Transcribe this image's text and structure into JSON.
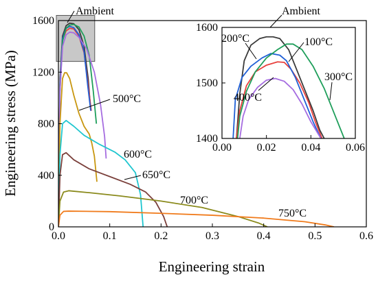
{
  "chart_data": [
    {
      "type": "line",
      "xlabel": "Engineering strain",
      "ylabel": "Engineering stress (MPa)",
      "xlim": [
        0.0,
        0.6
      ],
      "ylim": [
        0,
        1600
      ],
      "xticks": [
        "0.0",
        "0.1",
        "0.2",
        "0.3",
        "0.4",
        "0.5",
        "0.6"
      ],
      "yticks": [
        "0",
        "400",
        "800",
        "1200",
        "1600"
      ],
      "grid": false,
      "annotations": [
        "Ambient",
        "500°C",
        "600°C",
        "650°C",
        "700°C",
        "750°C"
      ],
      "series": [
        {
          "name": "Ambient",
          "color": "#3a3a3a",
          "x": [
            0.0,
            0.003,
            0.008,
            0.015,
            0.022,
            0.03,
            0.04,
            0.05,
            0.058,
            0.062
          ],
          "y": [
            0,
            1150,
            1480,
            1560,
            1580,
            1575,
            1530,
            1400,
            1150,
            950
          ]
        },
        {
          "name": "100°C",
          "color": "#e8403d",
          "x": [
            0.0,
            0.003,
            0.008,
            0.015,
            0.022,
            0.03,
            0.04,
            0.05,
            0.058,
            0.064
          ],
          "y": [
            0,
            1100,
            1450,
            1520,
            1540,
            1535,
            1480,
            1350,
            1100,
            900
          ]
        },
        {
          "name": "200°C",
          "color": "#1f5fd6",
          "x": [
            0.0,
            0.003,
            0.008,
            0.015,
            0.022,
            0.03,
            0.04,
            0.05,
            0.057,
            0.063
          ],
          "y": [
            0,
            1100,
            1460,
            1540,
            1555,
            1545,
            1490,
            1360,
            1100,
            900
          ]
        },
        {
          "name": "300°C",
          "color": "#1e9e5a",
          "x": [
            0.0,
            0.003,
            0.008,
            0.015,
            0.022,
            0.03,
            0.04,
            0.05,
            0.06,
            0.068,
            0.074
          ],
          "y": [
            0,
            1050,
            1440,
            1540,
            1565,
            1570,
            1550,
            1480,
            1330,
            1050,
            800
          ]
        },
        {
          "name": "400°C",
          "color": "#a56ce0",
          "x": [
            0.0,
            0.003,
            0.008,
            0.015,
            0.022,
            0.03,
            0.04,
            0.055,
            0.07,
            0.082,
            0.09,
            0.093
          ],
          "y": [
            0,
            1050,
            1400,
            1490,
            1510,
            1505,
            1470,
            1380,
            1200,
            950,
            700,
            530
          ]
        },
        {
          "name": "500°C",
          "color": "#c8960f",
          "x": [
            0.0,
            0.003,
            0.008,
            0.012,
            0.016,
            0.022,
            0.03,
            0.04,
            0.05,
            0.06,
            0.065,
            0.07,
            0.075
          ],
          "y": [
            0,
            800,
            1150,
            1195,
            1195,
            1150,
            1020,
            880,
            780,
            720,
            650,
            550,
            350
          ]
        },
        {
          "name": "600°C",
          "color": "#1fc6cf",
          "x": [
            0.0,
            0.003,
            0.008,
            0.015,
            0.03,
            0.05,
            0.08,
            0.11,
            0.13,
            0.15,
            0.16,
            0.165
          ],
          "y": [
            0,
            560,
            800,
            825,
            780,
            710,
            640,
            580,
            520,
            420,
            250,
            0
          ]
        },
        {
          "name": "650°C",
          "color": "#7a3f3a",
          "x": [
            0.0,
            0.003,
            0.008,
            0.015,
            0.03,
            0.06,
            0.1,
            0.14,
            0.17,
            0.19,
            0.205,
            0.212
          ],
          "y": [
            0,
            400,
            560,
            575,
            520,
            450,
            390,
            330,
            270,
            190,
            80,
            0
          ]
        },
        {
          "name": "700°C",
          "color": "#8a8a1c",
          "x": [
            0.0,
            0.003,
            0.01,
            0.02,
            0.06,
            0.12,
            0.2,
            0.28,
            0.35,
            0.39,
            0.407
          ],
          "y": [
            0,
            200,
            270,
            280,
            265,
            240,
            200,
            150,
            80,
            30,
            0
          ]
        },
        {
          "name": "750°C",
          "color": "#f07a1a",
          "x": [
            0.0,
            0.003,
            0.01,
            0.02,
            0.1,
            0.2,
            0.3,
            0.4,
            0.48,
            0.52,
            0.537
          ],
          "y": [
            0,
            90,
            120,
            122,
            118,
            105,
            90,
            68,
            40,
            15,
            0
          ]
        }
      ]
    },
    {
      "type": "line",
      "xlim": [
        0.0,
        0.06
      ],
      "ylim": [
        1400,
        1600
      ],
      "xticks": [
        "0.00",
        "0.02",
        "0.04",
        "0.06"
      ],
      "yticks": [
        "1400",
        "1500",
        "1600"
      ],
      "grid": false,
      "annotations": [
        "Ambient",
        "100°C",
        "200°C",
        "300°C",
        "400°C"
      ],
      "series": [
        {
          "name": "Ambient",
          "color": "#3a3a3a",
          "x": [
            0.0065,
            0.008,
            0.01,
            0.013,
            0.017,
            0.02,
            0.023,
            0.026,
            0.03,
            0.033,
            0.037,
            0.041,
            0.044,
            0.046
          ],
          "y": [
            1400,
            1480,
            1540,
            1568,
            1580,
            1583,
            1583,
            1580,
            1560,
            1530,
            1490,
            1450,
            1415,
            1400
          ]
        },
        {
          "name": "100°C",
          "color": "#e8403d",
          "x": [
            0.0065,
            0.008,
            0.011,
            0.015,
            0.02,
            0.025,
            0.028,
            0.031,
            0.035,
            0.039,
            0.042,
            0.045
          ],
          "y": [
            1400,
            1450,
            1495,
            1520,
            1532,
            1538,
            1537,
            1525,
            1500,
            1465,
            1430,
            1400
          ]
        },
        {
          "name": "200°C",
          "color": "#1f5fd6",
          "x": [
            0.005,
            0.006,
            0.009,
            0.013,
            0.018,
            0.022,
            0.026,
            0.029,
            0.033,
            0.037,
            0.041,
            0.0445
          ],
          "y": [
            1400,
            1470,
            1510,
            1530,
            1545,
            1553,
            1550,
            1540,
            1510,
            1470,
            1430,
            1400
          ]
        },
        {
          "name": "300°C",
          "color": "#1e9e5a",
          "x": [
            0.007,
            0.008,
            0.011,
            0.015,
            0.02,
            0.025,
            0.029,
            0.032,
            0.036,
            0.041,
            0.046,
            0.051,
            0.055
          ],
          "y": [
            1400,
            1440,
            1485,
            1520,
            1545,
            1560,
            1570,
            1570,
            1560,
            1530,
            1490,
            1440,
            1400
          ]
        },
        {
          "name": "400°C",
          "color": "#a56ce0",
          "x": [
            0.008,
            0.0095,
            0.012,
            0.016,
            0.02,
            0.024,
            0.028,
            0.032,
            0.036,
            0.04,
            0.0445
          ],
          "y": [
            1400,
            1440,
            1470,
            1492,
            1505,
            1508,
            1503,
            1488,
            1462,
            1430,
            1400
          ]
        }
      ]
    }
  ]
}
